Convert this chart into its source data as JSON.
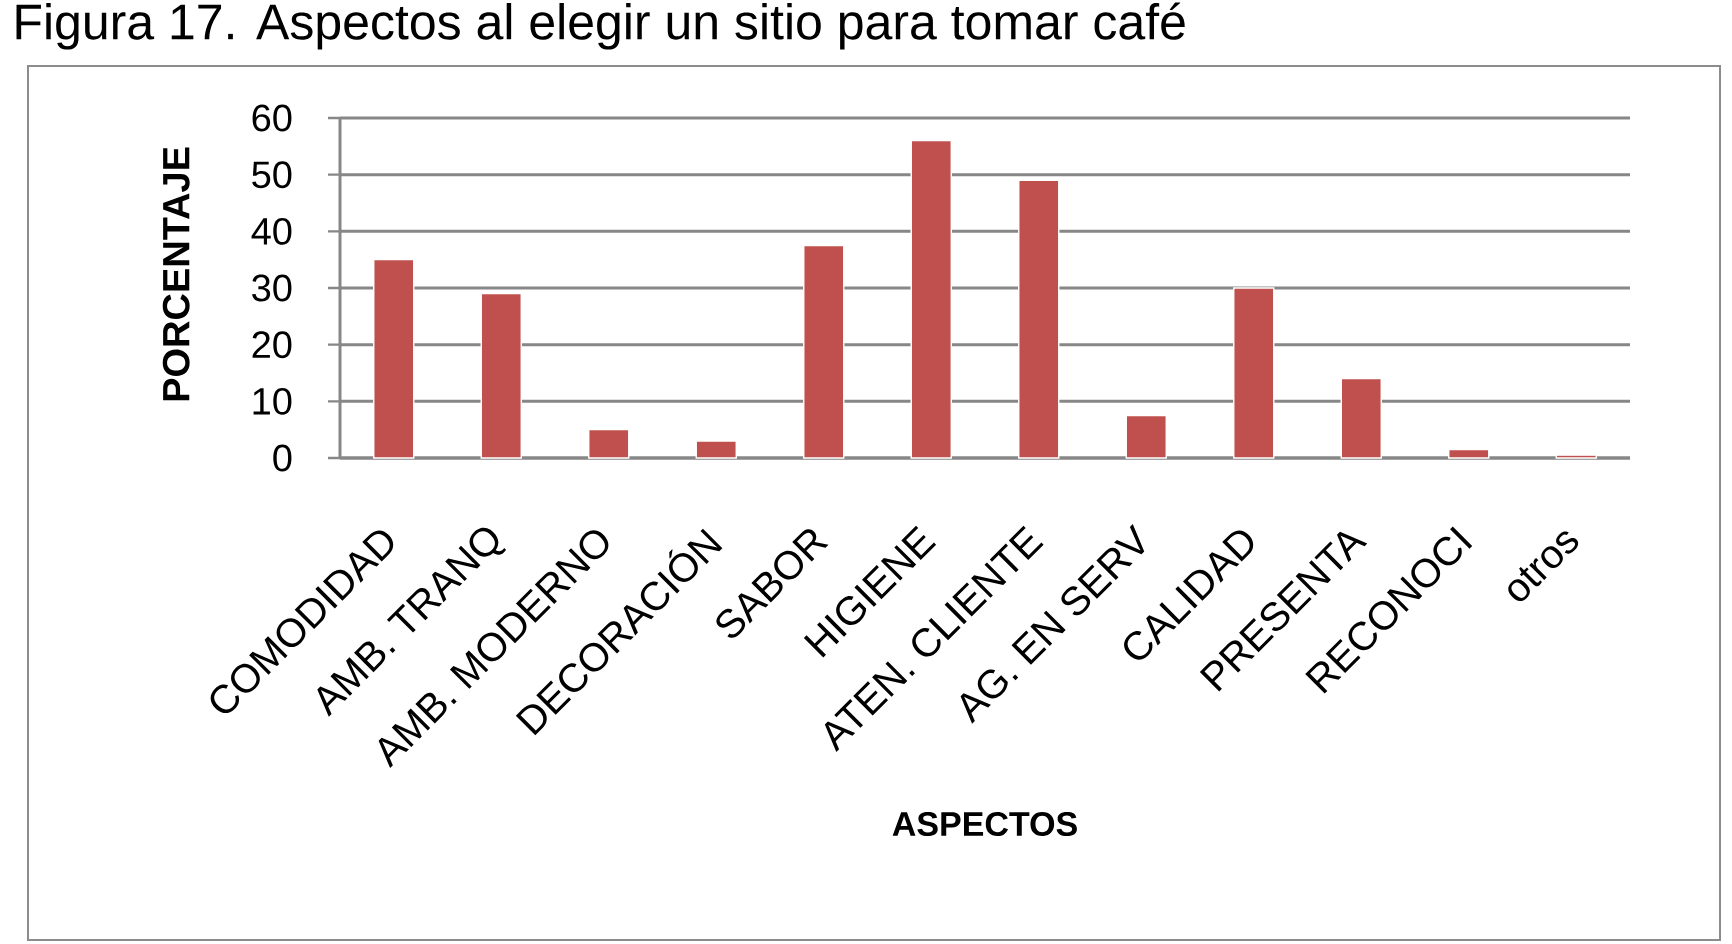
{
  "chart_data": {
    "type": "bar",
    "title": "Figura 17. Aspectos al elegir un sitio para tomar café",
    "xlabel": "ASPECTOS",
    "ylabel": "PORCENTAJE",
    "categories": [
      "COMODIDAD",
      "AMB. TRANQ",
      "AMB. MODERNO",
      "DECORACIÓN",
      "SABOR",
      "HIGIENE",
      "ATEN. CLIENTE",
      "AG. EN SERV",
      "CALIDAD",
      "PRESENTA",
      "RECONOCI",
      "otros"
    ],
    "values": [
      35,
      29,
      5,
      3,
      37.5,
      56,
      49,
      7.5,
      30,
      14,
      1.5,
      0.5
    ],
    "color": "#c0504d",
    "ylim": [
      0,
      60
    ],
    "yticks": [
      0,
      10,
      20,
      30,
      40,
      50,
      60
    ],
    "grid": "y"
  }
}
